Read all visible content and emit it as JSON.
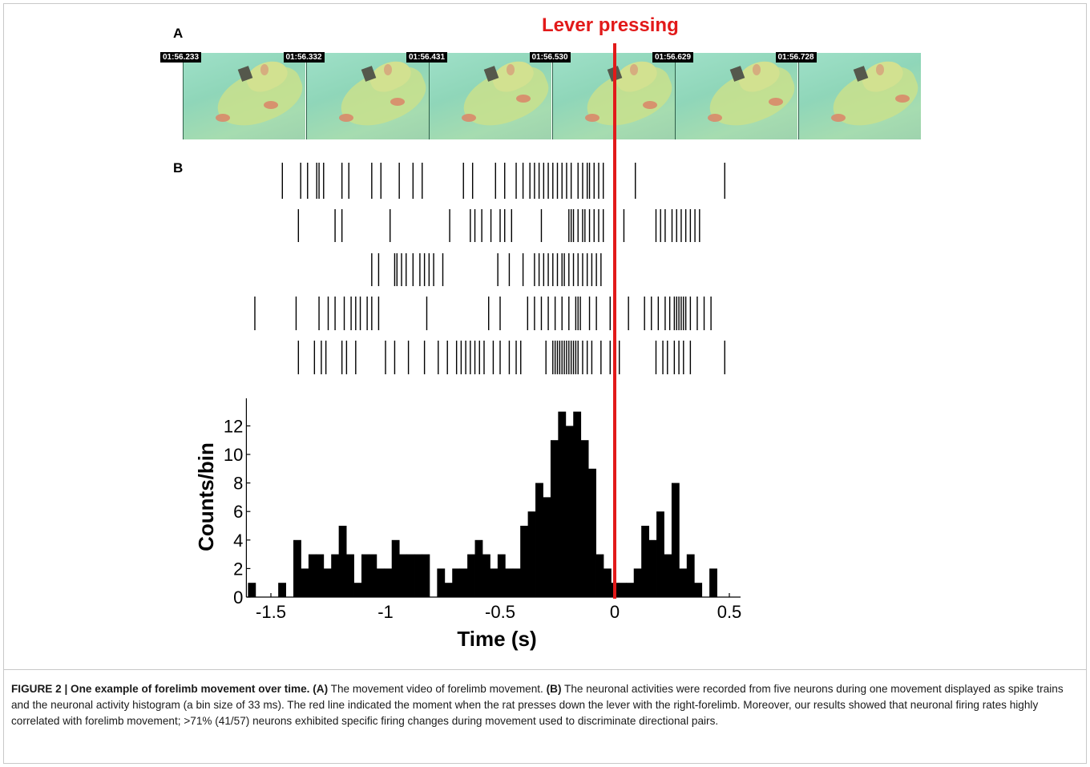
{
  "panel_labels": {
    "a": "A",
    "b": "B"
  },
  "lever_title": "Lever pressing",
  "timestamps": [
    "01:56.233",
    "01:56.332",
    "01:56.431",
    "01:56.530",
    "01:56.629",
    "01:56.728"
  ],
  "colors": {
    "event_line": "#e21a1a",
    "bars": "#000000",
    "spikes": "#000000"
  },
  "raster": {
    "x_range": [
      -1.65,
      0.55
    ],
    "trains": [
      [
        -1.45,
        -1.37,
        -1.34,
        -1.3,
        -1.29,
        -1.27,
        -1.19,
        -1.16,
        -1.06,
        -1.02,
        -0.94,
        -0.88,
        -0.84,
        -0.66,
        -0.62,
        -0.52,
        -0.48,
        -0.43,
        -0.4,
        -0.37,
        -0.35,
        -0.33,
        -0.31,
        -0.29,
        -0.27,
        -0.25,
        -0.23,
        -0.21,
        -0.19,
        -0.16,
        -0.14,
        -0.12,
        -0.11,
        -0.09,
        -0.07,
        -0.05,
        0.09,
        0.48
      ],
      [
        -1.38,
        -1.22,
        -1.19,
        -0.98,
        -0.72,
        -0.63,
        -0.61,
        -0.58,
        -0.54,
        -0.5,
        -0.48,
        -0.45,
        -0.32,
        -0.2,
        -0.19,
        -0.18,
        -0.16,
        -0.14,
        -0.13,
        -0.11,
        -0.09,
        -0.07,
        -0.05,
        0.0,
        0.04,
        0.18,
        0.2,
        0.22,
        0.25,
        0.27,
        0.29,
        0.31,
        0.33,
        0.35,
        0.37
      ],
      [
        -1.06,
        -1.03,
        -0.96,
        -0.95,
        -0.93,
        -0.91,
        -0.88,
        -0.85,
        -0.83,
        -0.81,
        -0.79,
        -0.75,
        -0.51,
        -0.46,
        -0.4,
        -0.35,
        -0.33,
        -0.31,
        -0.29,
        -0.27,
        -0.25,
        -0.23,
        -0.22,
        -0.2,
        -0.18,
        -0.16,
        -0.14,
        -0.12,
        -0.1,
        -0.08,
        -0.06
      ],
      [
        -1.57,
        -1.39,
        -1.29,
        -1.25,
        -1.22,
        -1.18,
        -1.15,
        -1.13,
        -1.11,
        -1.08,
        -1.06,
        -1.03,
        -0.82,
        -0.55,
        -0.5,
        -0.38,
        -0.35,
        -0.32,
        -0.29,
        -0.26,
        -0.23,
        -0.2,
        -0.17,
        -0.16,
        -0.15,
        -0.11,
        -0.08,
        -0.02,
        0.06,
        0.13,
        0.16,
        0.19,
        0.22,
        0.24,
        0.26,
        0.27,
        0.28,
        0.29,
        0.3,
        0.31,
        0.33,
        0.36,
        0.39,
        0.42
      ],
      [
        -1.38,
        -1.31,
        -1.28,
        -1.26,
        -1.19,
        -1.17,
        -1.13,
        -1.0,
        -0.96,
        -0.9,
        -0.83,
        -0.77,
        -0.73,
        -0.69,
        -0.67,
        -0.65,
        -0.63,
        -0.61,
        -0.59,
        -0.57,
        -0.53,
        -0.5,
        -0.46,
        -0.43,
        -0.41,
        -0.3,
        -0.27,
        -0.26,
        -0.25,
        -0.24,
        -0.23,
        -0.22,
        -0.21,
        -0.2,
        -0.19,
        -0.18,
        -0.17,
        -0.16,
        -0.14,
        -0.12,
        -0.1,
        -0.06,
        -0.02,
        0.02,
        0.18,
        0.21,
        0.23,
        0.26,
        0.28,
        0.3,
        0.33,
        0.48
      ]
    ]
  },
  "chart_data": {
    "type": "bar",
    "xlabel": "Time (s)",
    "ylabel": "Counts/bin",
    "xlim": [
      -1.6,
      0.5
    ],
    "ylim": [
      0,
      13
    ],
    "xticks": [
      "-1.5",
      "-1",
      "-0.5",
      "0",
      "0.5"
    ],
    "yticks": [
      "0",
      "2",
      "4",
      "6",
      "8",
      "10",
      "12"
    ],
    "bin_width": 0.033,
    "bin_starts": [
      -1.6,
      -1.567,
      -1.534,
      -1.501,
      -1.468,
      -1.435,
      -1.402,
      -1.369,
      -1.336,
      -1.303,
      -1.27,
      -1.237,
      -1.204,
      -1.171,
      -1.138,
      -1.105,
      -1.072,
      -1.039,
      -1.006,
      -0.973,
      -0.94,
      -0.907,
      -0.874,
      -0.841,
      -0.808,
      -0.775,
      -0.742,
      -0.709,
      -0.676,
      -0.643,
      -0.61,
      -0.577,
      -0.544,
      -0.511,
      -0.478,
      -0.445,
      -0.412,
      -0.379,
      -0.346,
      -0.313,
      -0.28,
      -0.247,
      -0.214,
      -0.181,
      -0.148,
      -0.115,
      -0.082,
      -0.049,
      -0.016,
      0.017,
      0.05,
      0.083,
      0.116,
      0.149,
      0.182,
      0.215,
      0.248,
      0.281,
      0.314,
      0.347,
      0.38,
      0.413,
      0.446
    ],
    "values": [
      1,
      0,
      0,
      0,
      1,
      0,
      4,
      2,
      3,
      3,
      2,
      3,
      5,
      3,
      1,
      3,
      3,
      2,
      2,
      4,
      3,
      3,
      3,
      3,
      0,
      2,
      1,
      2,
      2,
      3,
      4,
      3,
      2,
      3,
      2,
      2,
      5,
      6,
      8,
      7,
      11,
      13,
      12,
      13,
      11,
      9,
      3,
      2,
      1,
      1,
      1,
      2,
      5,
      4,
      6,
      3,
      8,
      2,
      3,
      1,
      0,
      2,
      0
    ],
    "event_marker": {
      "x": 0
    }
  },
  "caption": {
    "figure_label": "FIGURE 2 | One example of forelimb movement over time.",
    "a_label": "(A)",
    "a_text": " The movement video of forelimb movement. ",
    "b_label": "(B)",
    "b_text": " The neuronal activities were recorded from five neurons during one movement displayed as spike trains and the neuronal activity histogram (a bin size of 33 ms). The red line indicated the moment when the rat presses down the lever with the right-forelimb. Moreover, our results showed that neuronal firing rates highly correlated with forelimb movement; >71% (41/57) neurons exhibited specific firing changes during movement used to discriminate directional pairs."
  }
}
